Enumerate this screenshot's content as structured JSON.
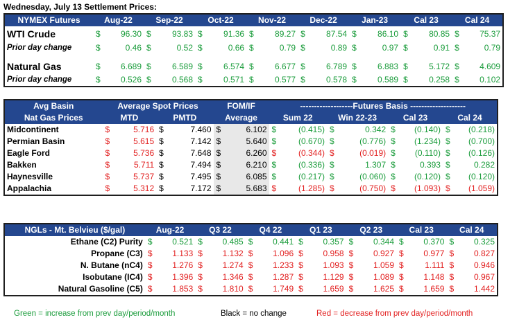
{
  "title": "Wednesday, July 13 Settlement Prices:",
  "futures": {
    "columns": [
      "NYMEX Futures",
      "Aug-22",
      "Sep-22",
      "Oct-22",
      "Nov-22",
      "Dec-22",
      "Jan-23",
      "Cal 23",
      "Cal 24"
    ],
    "rows": [
      {
        "label": "WTI Crude",
        "type": "main",
        "values": [
          "96.30",
          "93.83",
          "91.36",
          "89.27",
          "87.54",
          "86.10",
          "80.85",
          "75.37"
        ],
        "colors": [
          "g",
          "g",
          "g",
          "g",
          "g",
          "g",
          "g",
          "g"
        ]
      },
      {
        "label": "Prior day change",
        "type": "sub",
        "values": [
          "0.46",
          "0.52",
          "0.66",
          "0.79",
          "0.89",
          "0.97",
          "0.91",
          "0.79"
        ],
        "colors": [
          "g",
          "g",
          "g",
          "g",
          "g",
          "g",
          "g",
          "g"
        ]
      },
      {
        "label": "Natural Gas",
        "type": "main",
        "values": [
          "6.689",
          "6.589",
          "6.574",
          "6.677",
          "6.789",
          "6.883",
          "5.172",
          "4.609"
        ],
        "colors": [
          "g",
          "g",
          "g",
          "g",
          "g",
          "g",
          "g",
          "g"
        ]
      },
      {
        "label": "Prior day change",
        "type": "sub",
        "values": [
          "0.526",
          "0.568",
          "0.571",
          "0.577",
          "0.578",
          "0.589",
          "0.258",
          "0.102"
        ],
        "colors": [
          "g",
          "g",
          "g",
          "g",
          "g",
          "g",
          "g",
          "g"
        ]
      }
    ]
  },
  "basis": {
    "header1": [
      "Avg Basin",
      "Average Spot Prices",
      "FOM/IF",
      "-------------------Futures Basis --------------------"
    ],
    "header2": [
      "Nat Gas Prices",
      "MTD",
      "PMTD",
      "Average",
      "Sum 22",
      "Win 22-23",
      "Cal 23",
      "Cal 24"
    ],
    "rows": [
      {
        "label": "Midcontinent",
        "mtd": "5.716",
        "pmtd": "7.460",
        "fom": "6.102",
        "fut": [
          "(0.415)",
          "0.342",
          "(0.140)",
          "(0.218)"
        ],
        "futc": [
          "g",
          "g",
          "g",
          "g"
        ]
      },
      {
        "label": "Permian Basin",
        "mtd": "5.615",
        "pmtd": "7.142",
        "fom": "5.640",
        "fut": [
          "(0.670)",
          "(0.776)",
          "(1.234)",
          "(0.700)"
        ],
        "futc": [
          "g",
          "g",
          "g",
          "g"
        ]
      },
      {
        "label": "Eagle Ford",
        "mtd": "5.736",
        "pmtd": "7.648",
        "fom": "6.260",
        "fut": [
          "(0.344)",
          "(0.019)",
          "(0.110)",
          "(0.126)"
        ],
        "futc": [
          "r",
          "r",
          "g",
          "g"
        ]
      },
      {
        "label": "Bakken",
        "mtd": "5.711",
        "pmtd": "7.494",
        "fom": "6.210",
        "fut": [
          "(0.336)",
          "1.307",
          "0.393",
          "0.282"
        ],
        "futc": [
          "g",
          "g",
          "g",
          "g"
        ]
      },
      {
        "label": "Haynesville",
        "mtd": "5.737",
        "pmtd": "7.495",
        "fom": "6.085",
        "fut": [
          "(0.217)",
          "(0.060)",
          "(0.120)",
          "(0.120)"
        ],
        "futc": [
          "g",
          "g",
          "g",
          "g"
        ]
      },
      {
        "label": "Appalachia",
        "mtd": "5.312",
        "pmtd": "7.172",
        "fom": "5.683",
        "fut": [
          "(1.285)",
          "(0.750)",
          "(1.093)",
          "(1.059)"
        ],
        "futc": [
          "r",
          "r",
          "r",
          "r"
        ]
      }
    ]
  },
  "ngl": {
    "columns": [
      "NGLs - Mt. Belvieu ($/gal)",
      "Aug-22",
      "Q3 22",
      "Q4 22",
      "Q1 23",
      "Q2 23",
      "Cal 23",
      "Cal 24"
    ],
    "rows": [
      {
        "label": "Ethane (C2) Purity",
        "values": [
          "0.521",
          "0.485",
          "0.441",
          "0.357",
          "0.344",
          "0.370",
          "0.325"
        ],
        "colors": [
          "g",
          "g",
          "g",
          "g",
          "g",
          "g",
          "g"
        ]
      },
      {
        "label": "Propane (C3)",
        "values": [
          "1.133",
          "1.132",
          "1.096",
          "0.958",
          "0.927",
          "0.977",
          "0.827"
        ],
        "colors": [
          "r",
          "r",
          "r",
          "r",
          "r",
          "r",
          "r"
        ]
      },
      {
        "label": "N. Butane (nC4)",
        "values": [
          "1.276",
          "1.274",
          "1.233",
          "1.093",
          "1.059",
          "1.111",
          "0.946"
        ],
        "colors": [
          "r",
          "r",
          "r",
          "r",
          "r",
          "r",
          "r"
        ]
      },
      {
        "label": "Isobutane (IC4)",
        "values": [
          "1.396",
          "1.346",
          "1.287",
          "1.129",
          "1.089",
          "1.148",
          "0.967"
        ],
        "colors": [
          "r",
          "r",
          "r",
          "r",
          "r",
          "r",
          "r"
        ]
      },
      {
        "label": "Natural Gasoline (C5)",
        "values": [
          "1.853",
          "1.810",
          "1.749",
          "1.659",
          "1.625",
          "1.659",
          "1.442"
        ],
        "colors": [
          "r",
          "r",
          "r",
          "r",
          "r",
          "r",
          "r"
        ]
      }
    ]
  },
  "dollar": "$",
  "legend": {
    "green": "Green = increase from prev day/period/month",
    "black": "Black = no change",
    "red": "Red = decrease from prev day/period/month"
  },
  "colors": {
    "green": "#1a9c3b",
    "red": "#e21f1f",
    "header": "#24478f"
  }
}
